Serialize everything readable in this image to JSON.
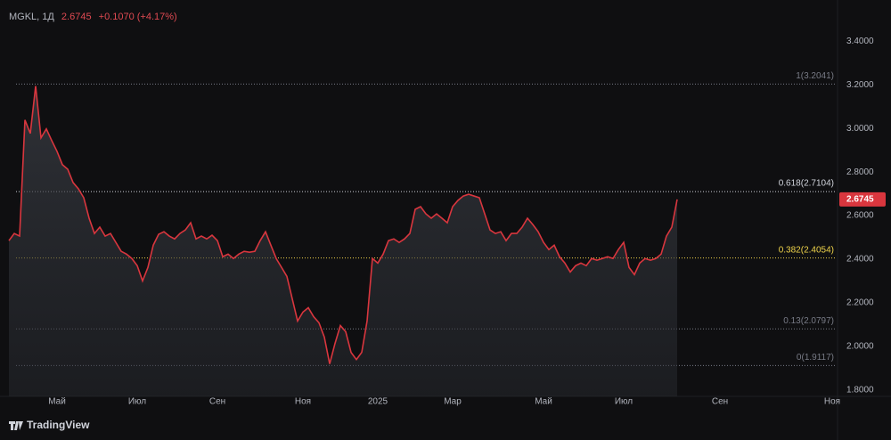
{
  "brand": "TradingView",
  "chart_data": {
    "type": "area",
    "title": "MGKL, 1Д",
    "last_price_label": "2.6745",
    "change_label": "+0.1070 (+4.17%)",
    "categories": [
      null,
      null,
      null,
      null,
      null,
      null,
      null,
      null,
      null,
      "Май",
      null,
      null,
      null,
      null,
      null,
      null,
      null,
      null,
      null,
      null,
      null,
      null,
      null,
      null,
      "Июл",
      null,
      null,
      null,
      null,
      null,
      null,
      null,
      null,
      null,
      null,
      null,
      null,
      null,
      null,
      "Сен",
      null,
      null,
      null,
      null,
      null,
      null,
      null,
      null,
      null,
      null,
      null,
      null,
      null,
      null,
      null,
      "Ноя",
      null,
      null,
      null,
      null,
      null,
      null,
      null,
      null,
      null,
      null,
      null,
      null,
      null,
      "2025",
      null,
      null,
      null,
      null,
      null,
      null,
      null,
      null,
      null,
      null,
      null,
      null,
      null,
      "Мар",
      null,
      null,
      null,
      null,
      null,
      null,
      null,
      null,
      null,
      null,
      null,
      null,
      null,
      null,
      null,
      null,
      "Май",
      null,
      null,
      null,
      null,
      null,
      null,
      null,
      null,
      null,
      null,
      null,
      null,
      null,
      null,
      "Июл",
      null,
      null,
      null,
      null,
      null,
      null,
      null,
      null,
      null,
      null,
      null,
      null,
      null,
      null,
      null,
      null,
      null,
      "Сен",
      null,
      null,
      null,
      null,
      null,
      null,
      null,
      null,
      null,
      null,
      null,
      null,
      null,
      null,
      null,
      null,
      null,
      null,
      null,
      null,
      "Ноя"
    ],
    "series": [
      {
        "name": "MGKL",
        "color": "#d9363e",
        "values": [
          2.485,
          2.518,
          2.506,
          3.039,
          2.977,
          3.195,
          2.957,
          2.998,
          2.945,
          2.895,
          2.834,
          2.813,
          2.752,
          2.723,
          2.682,
          2.588,
          2.518,
          2.547,
          2.506,
          2.518,
          2.477,
          2.436,
          2.423,
          2.403,
          2.37,
          2.3,
          2.362,
          2.464,
          2.514,
          2.526,
          2.506,
          2.493,
          2.518,
          2.534,
          2.567,
          2.493,
          2.506,
          2.493,
          2.51,
          2.485,
          2.411,
          2.423,
          2.403,
          2.423,
          2.436,
          2.432,
          2.436,
          2.485,
          2.526,
          2.464,
          2.403,
          2.362,
          2.321,
          2.218,
          2.116,
          2.157,
          2.177,
          2.136,
          2.108,
          2.042,
          1.919,
          2.013,
          2.095,
          2.067,
          1.972,
          1.939,
          1.972,
          2.116,
          2.403,
          2.382,
          2.423,
          2.485,
          2.493,
          2.477,
          2.493,
          2.518,
          2.629,
          2.641,
          2.608,
          2.588,
          2.608,
          2.588,
          2.567,
          2.641,
          2.67,
          2.69,
          2.698,
          2.69,
          2.682,
          2.608,
          2.534,
          2.518,
          2.526,
          2.485,
          2.518,
          2.518,
          2.547,
          2.588,
          2.559,
          2.526,
          2.477,
          2.444,
          2.464,
          2.411,
          2.382,
          2.341,
          2.37,
          2.382,
          2.37,
          2.403,
          2.395,
          2.403,
          2.411,
          2.403,
          2.444,
          2.477,
          2.362,
          2.329,
          2.382,
          2.403,
          2.395,
          2.403,
          2.423,
          2.506,
          2.547,
          2.6745,
          null,
          null,
          null,
          null,
          null,
          null,
          null,
          null,
          null,
          null,
          null,
          null,
          null,
          null,
          null,
          null,
          null,
          null,
          null,
          null,
          null,
          null,
          null,
          null,
          null,
          null,
          null,
          null,
          null
        ]
      }
    ],
    "ylim": [
      1.77,
      3.59
    ],
    "yticks": [
      {
        "value": 1.8,
        "label": "1.8000"
      },
      {
        "value": 2.0,
        "label": "2.0000"
      },
      {
        "value": 2.2,
        "label": "2.2000"
      },
      {
        "value": 2.4,
        "label": "2.4000"
      },
      {
        "value": 2.6,
        "label": "2.6000"
      },
      {
        "value": 2.8,
        "label": "2.8000"
      },
      {
        "value": 3.0,
        "label": "3.0000"
      },
      {
        "value": 3.2,
        "label": "3.2000"
      },
      {
        "value": 3.4,
        "label": "3.4000"
      }
    ],
    "levels": [
      {
        "label": "1(3.2041)",
        "value": 3.2041,
        "color": "#787b86"
      },
      {
        "label": "0.618(2.7104)",
        "value": 2.7104,
        "color": "#d1d4dc"
      },
      {
        "label": "0.382(2.4054)",
        "value": 2.4054,
        "color": "#f0d44a"
      },
      {
        "label": "0.13(2.0797)",
        "value": 2.0797,
        "color": "#787b86"
      },
      {
        "label": "0(1.9117)",
        "value": 1.9117,
        "color": "#787b86"
      }
    ],
    "price_tag_color": "#d9363e"
  }
}
